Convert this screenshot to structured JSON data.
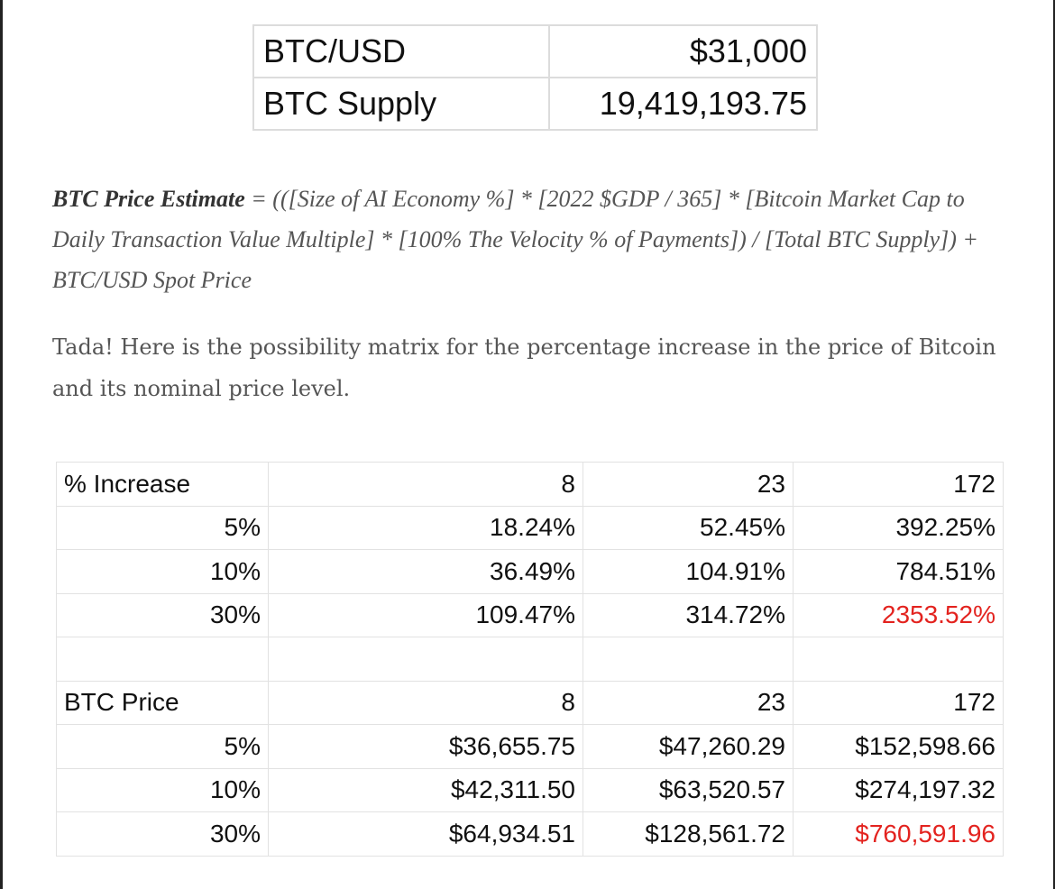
{
  "top_table": {
    "rows": [
      {
        "label": "BTC/USD",
        "value": "$31,000"
      },
      {
        "label": "BTC Supply",
        "value": "19,419,193.75"
      }
    ]
  },
  "formula": {
    "bold": "BTC Price Estimate",
    "rest": " = (([Size of AI Economy %] * [2022 $GDP / 365] * [Bitcoin Market Cap to Daily Transaction Value Multiple] * [100% The Velocity % of Payments]) / [Total BTC Supply]) + BTC/USD Spot Price"
  },
  "tada_text": "Tada! Here is the possibility matrix for the percentage increase in the price of Bitcoin and its nominal price level.",
  "matrix": {
    "increase_header": [
      "% Increase",
      "8",
      "23",
      "172"
    ],
    "increase_rows": [
      [
        "5%",
        "18.24%",
        "52.45%",
        "392.25%"
      ],
      [
        "10%",
        "36.49%",
        "104.91%",
        "784.51%"
      ],
      [
        "30%",
        "109.47%",
        "314.72%",
        "2353.52%"
      ]
    ],
    "price_header": [
      "BTC Price",
      "8",
      "23",
      "172"
    ],
    "price_rows": [
      [
        "5%",
        "$36,655.75",
        "$47,260.29",
        "$152,598.66"
      ],
      [
        "10%",
        "$42,311.50",
        "$63,520.57",
        "$274,197.32"
      ],
      [
        "30%",
        "$64,934.51",
        "$128,561.72",
        "$760,591.96"
      ]
    ]
  },
  "colors": {
    "highlight": "#e3231f",
    "text_muted": "#555555"
  }
}
